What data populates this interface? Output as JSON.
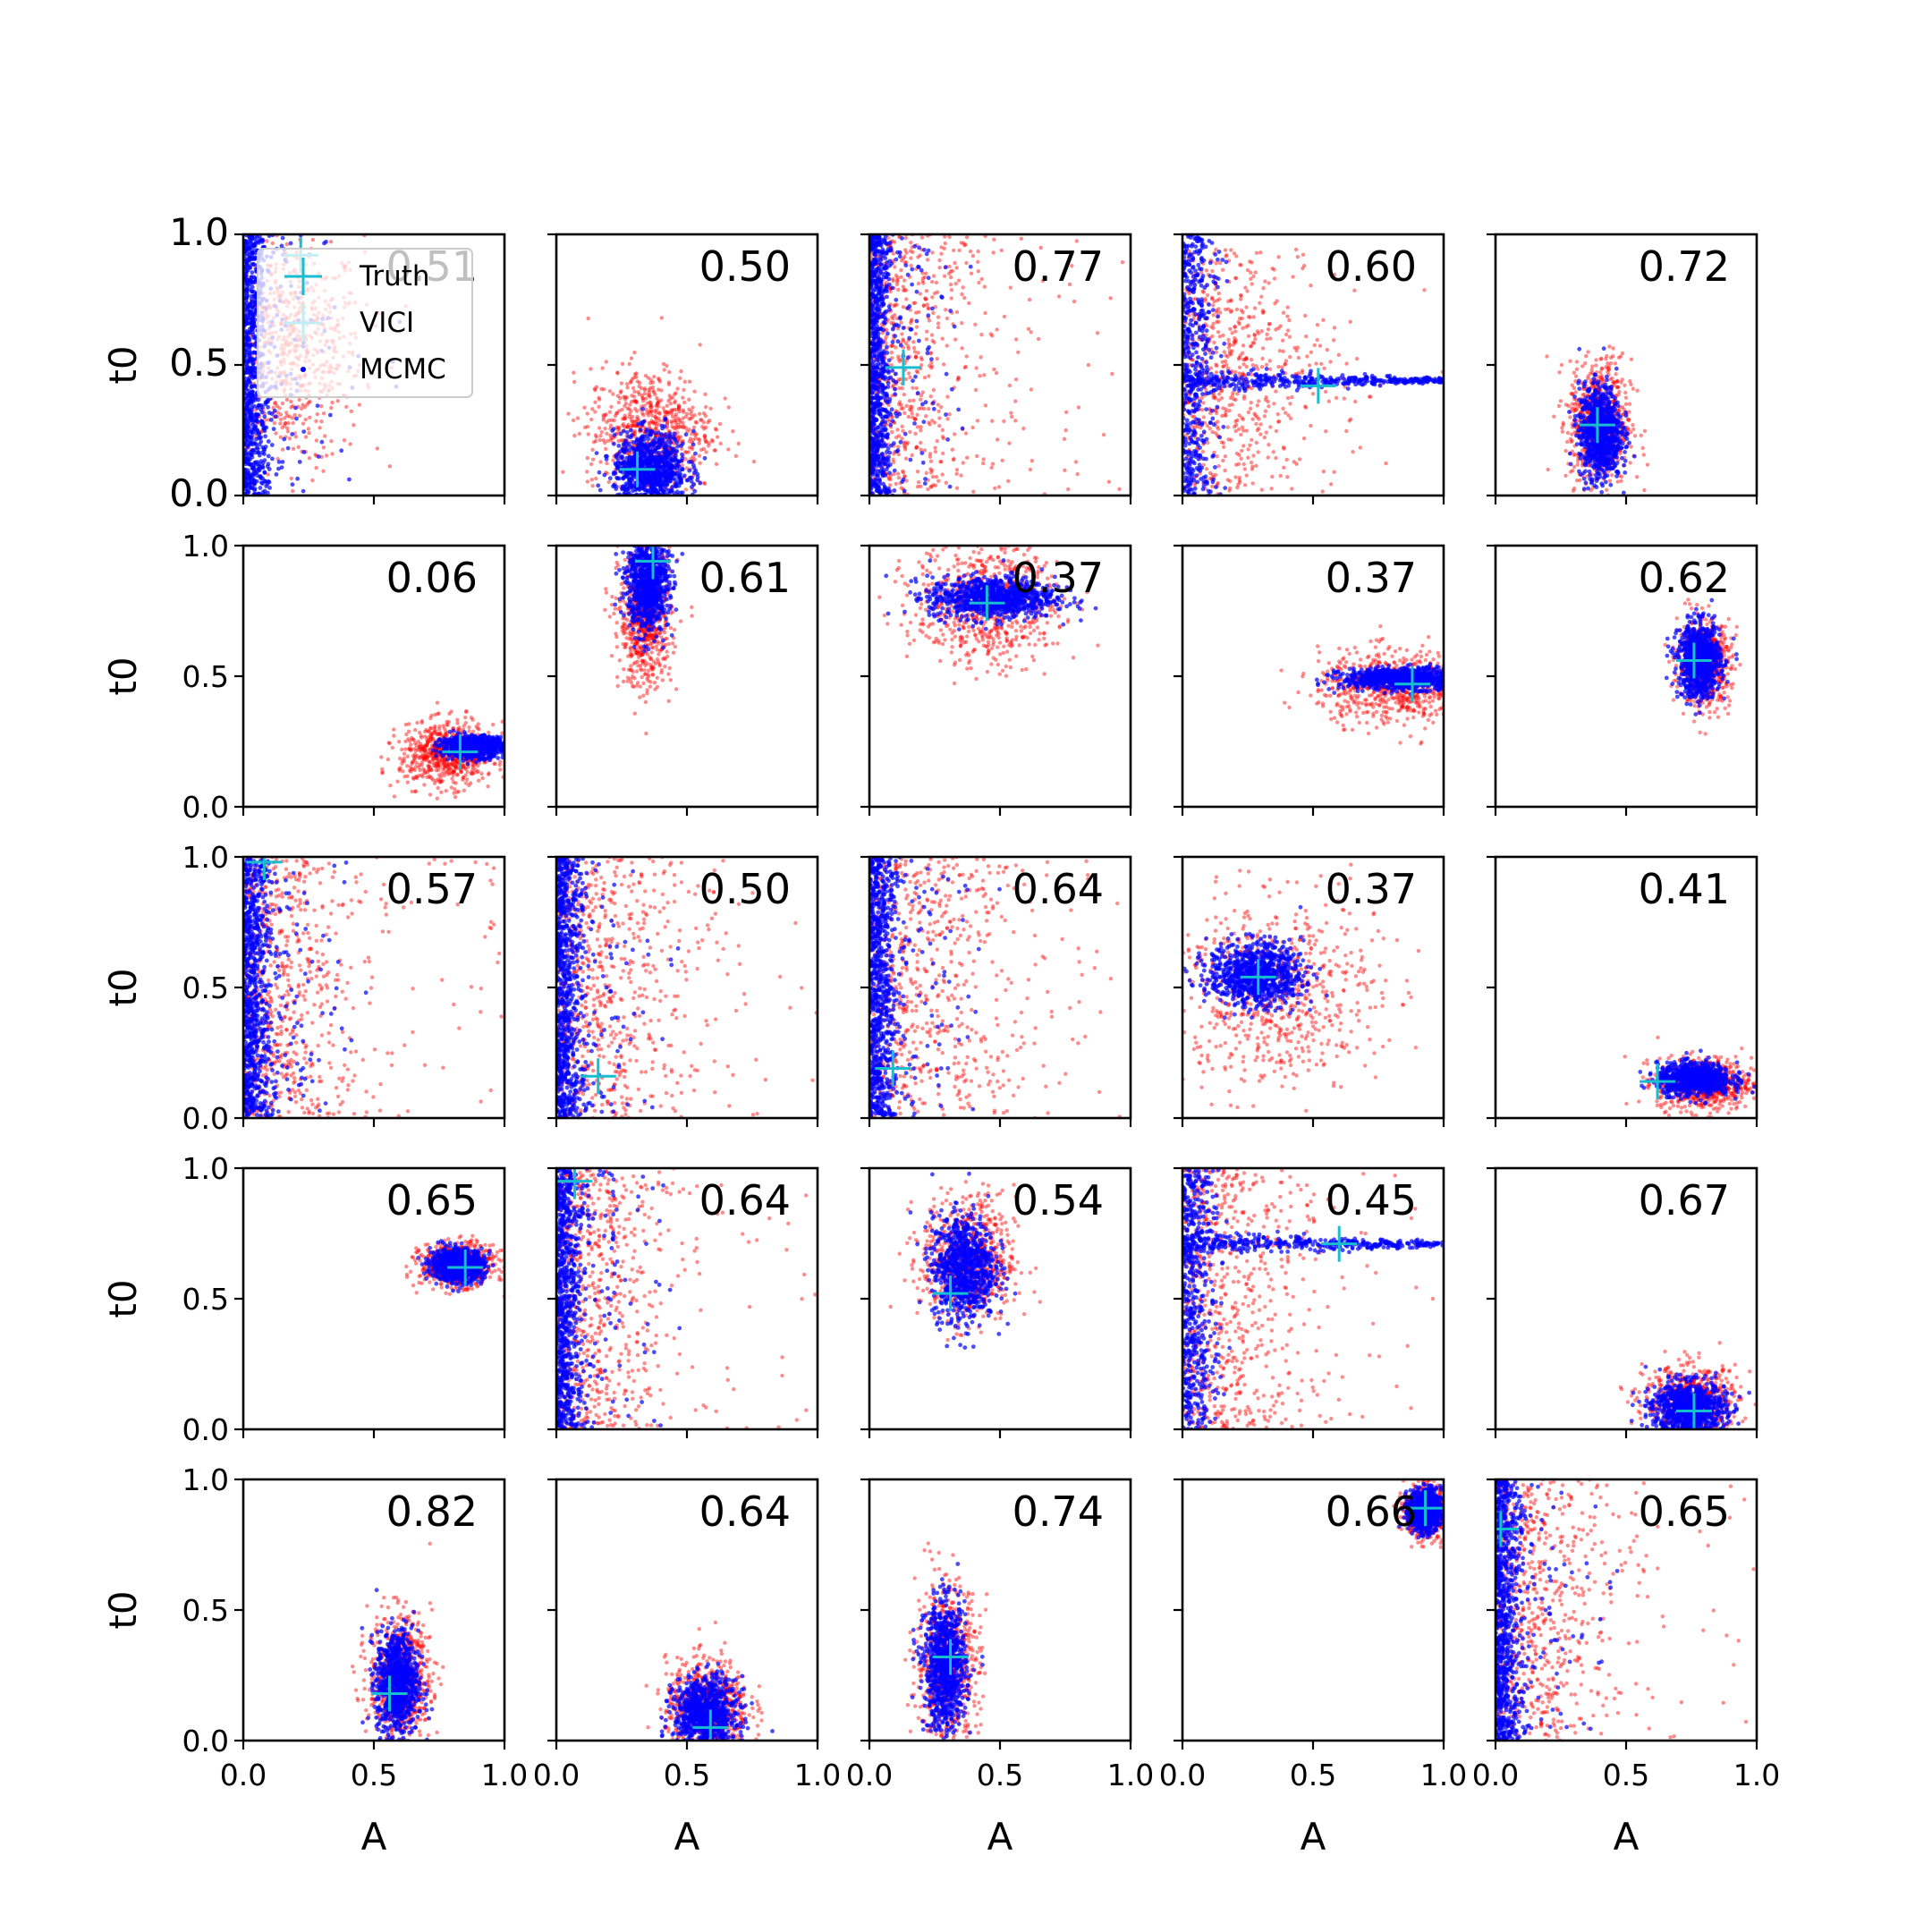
{
  "chart_data": {
    "type": "scatter",
    "layout": "5x5 grid of scatter panels",
    "xlabel": "A",
    "ylabel": "t0",
    "xlim": [
      0.0,
      1.0
    ],
    "ylim": [
      0.0,
      1.0
    ],
    "xticks": [
      "0.0",
      "0.5",
      "1.0"
    ],
    "yticks": [
      "0.0",
      "0.5",
      "1.0"
    ],
    "legend": {
      "position": "upper-left of first panel",
      "entries": [
        {
          "label": "Truth",
          "marker": "plus",
          "color": "#17becf"
        },
        {
          "label": "VICI",
          "marker": "dot",
          "color": "#ff0000"
        },
        {
          "label": "MCMC",
          "marker": "dot",
          "color": "#0000ff"
        }
      ]
    },
    "colors": {
      "vici": "#ff0000",
      "mcmc": "#0000ff",
      "truth": "#17becf"
    },
    "panels": [
      {
        "label": "0.51",
        "truth": [
          0.22,
          0.92
        ],
        "vici": {
          "shape": "blob",
          "cx": 0.18,
          "cy": 0.55,
          "sx": 0.14,
          "sy": 0.22
        },
        "mcmc": {
          "shape": "wall",
          "x0": 0.0,
          "x1": 0.08
        }
      },
      {
        "label": "0.50",
        "truth": [
          0.31,
          0.1
        ],
        "vici": {
          "shape": "blob",
          "cx": 0.36,
          "cy": 0.25,
          "sx": 0.12,
          "sy": 0.12
        },
        "mcmc": {
          "shape": "blob",
          "cx": 0.36,
          "cy": 0.1,
          "sx": 0.07,
          "sy": 0.07
        }
      },
      {
        "label": "0.77",
        "truth": [
          0.13,
          0.49
        ],
        "vici": {
          "shape": "wall",
          "x0": 0.0,
          "x1": 0.35
        },
        "mcmc": {
          "shape": "wall",
          "x0": 0.0,
          "x1": 0.07
        }
      },
      {
        "label": "0.60",
        "truth": [
          0.52,
          0.42
        ],
        "vici": {
          "shape": "fan",
          "cx": 0.1,
          "cy": 0.45,
          "sx": 0.25,
          "sy": 0.28
        },
        "mcmc": {
          "shape": "spike",
          "cx": 0.08,
          "cy": 0.44
        }
      },
      {
        "label": "0.72",
        "truth": [
          0.39,
          0.27
        ],
        "vici": {
          "shape": "blob",
          "cx": 0.4,
          "cy": 0.28,
          "sx": 0.06,
          "sy": 0.12
        },
        "mcmc": {
          "shape": "blob",
          "cx": 0.4,
          "cy": 0.24,
          "sx": 0.04,
          "sy": 0.09
        }
      },
      {
        "label": "0.06",
        "truth": [
          0.83,
          0.21
        ],
        "vici": {
          "shape": "blob",
          "cx": 0.78,
          "cy": 0.2,
          "sx": 0.09,
          "sy": 0.06
        },
        "mcmc": {
          "shape": "blob",
          "cx": 0.88,
          "cy": 0.23,
          "sx": 0.06,
          "sy": 0.02
        }
      },
      {
        "label": "0.61",
        "truth": [
          0.37,
          0.94
        ],
        "vici": {
          "shape": "blob",
          "cx": 0.34,
          "cy": 0.72,
          "sx": 0.05,
          "sy": 0.13
        },
        "mcmc": {
          "shape": "blob",
          "cx": 0.35,
          "cy": 0.86,
          "sx": 0.04,
          "sy": 0.09
        }
      },
      {
        "label": "0.37",
        "truth": [
          0.45,
          0.78
        ],
        "vici": {
          "shape": "blob",
          "cx": 0.45,
          "cy": 0.78,
          "sx": 0.14,
          "sy": 0.12
        },
        "mcmc": {
          "shape": "blob",
          "cx": 0.47,
          "cy": 0.8,
          "sx": 0.12,
          "sy": 0.04
        }
      },
      {
        "label": "0.37",
        "truth": [
          0.88,
          0.47
        ],
        "vici": {
          "shape": "blob",
          "cx": 0.82,
          "cy": 0.46,
          "sx": 0.15,
          "sy": 0.07
        },
        "mcmc": {
          "shape": "blob",
          "cx": 0.85,
          "cy": 0.49,
          "sx": 0.12,
          "sy": 0.02
        }
      },
      {
        "label": "0.62",
        "truth": [
          0.76,
          0.56
        ],
        "vici": {
          "shape": "blob",
          "cx": 0.8,
          "cy": 0.55,
          "sx": 0.05,
          "sy": 0.08
        },
        "mcmc": {
          "shape": "blob",
          "cx": 0.78,
          "cy": 0.56,
          "sx": 0.04,
          "sy": 0.07
        }
      },
      {
        "label": "0.57",
        "truth": [
          0.08,
          0.98
        ],
        "vici": {
          "shape": "wall",
          "x0": 0.0,
          "x1": 0.35
        },
        "mcmc": {
          "shape": "wall",
          "x0": 0.0,
          "x1": 0.09
        }
      },
      {
        "label": "0.50",
        "truth": [
          0.16,
          0.16
        ],
        "vici": {
          "shape": "wall",
          "x0": 0.0,
          "x1": 0.45
        },
        "mcmc": {
          "shape": "wall",
          "x0": 0.0,
          "x1": 0.08
        }
      },
      {
        "label": "0.64",
        "truth": [
          0.09,
          0.19
        ],
        "vici": {
          "shape": "wall",
          "x0": 0.0,
          "x1": 0.5
        },
        "mcmc": {
          "shape": "wall",
          "x0": 0.0,
          "x1": 0.09
        }
      },
      {
        "label": "0.37",
        "truth": [
          0.29,
          0.54
        ],
        "vici": {
          "shape": "blob",
          "cx": 0.35,
          "cy": 0.48,
          "sx": 0.2,
          "sy": 0.18
        },
        "mcmc": {
          "shape": "blob",
          "cx": 0.28,
          "cy": 0.55,
          "sx": 0.09,
          "sy": 0.06
        }
      },
      {
        "label": "0.41",
        "truth": [
          0.62,
          0.14
        ],
        "vici": {
          "shape": "blob",
          "cx": 0.8,
          "cy": 0.13,
          "sx": 0.09,
          "sy": 0.05
        },
        "mcmc": {
          "shape": "blob",
          "cx": 0.76,
          "cy": 0.15,
          "sx": 0.07,
          "sy": 0.03
        }
      },
      {
        "label": "0.65",
        "truth": [
          0.85,
          0.62
        ],
        "vici": {
          "shape": "blob",
          "cx": 0.82,
          "cy": 0.63,
          "sx": 0.07,
          "sy": 0.04
        },
        "mcmc": {
          "shape": "blob",
          "cx": 0.82,
          "cy": 0.63,
          "sx": 0.05,
          "sy": 0.03
        }
      },
      {
        "label": "0.64",
        "truth": [
          0.07,
          0.95
        ],
        "vici": {
          "shape": "wall",
          "x0": 0.0,
          "x1": 0.35
        },
        "mcmc": {
          "shape": "wall",
          "x0": 0.0,
          "x1": 0.08
        }
      },
      {
        "label": "0.54",
        "truth": [
          0.31,
          0.52
        ],
        "vici": {
          "shape": "blob",
          "cx": 0.38,
          "cy": 0.65,
          "sx": 0.09,
          "sy": 0.12
        },
        "mcmc": {
          "shape": "blob",
          "cx": 0.36,
          "cy": 0.62,
          "sx": 0.06,
          "sy": 0.1
        }
      },
      {
        "label": "0.45",
        "truth": [
          0.6,
          0.71
        ],
        "vici": {
          "shape": "wall",
          "x0": 0.0,
          "x1": 0.4
        },
        "mcmc": {
          "shape": "spike",
          "cx": 0.08,
          "cy": 0.71
        }
      },
      {
        "label": "0.67",
        "truth": [
          0.76,
          0.07
        ],
        "vici": {
          "shape": "blob",
          "cx": 0.75,
          "cy": 0.1,
          "sx": 0.09,
          "sy": 0.07
        },
        "mcmc": {
          "shape": "blob",
          "cx": 0.74,
          "cy": 0.08,
          "sx": 0.07,
          "sy": 0.05
        }
      },
      {
        "label": "0.82",
        "truth": [
          0.56,
          0.18
        ],
        "vici": {
          "shape": "blob",
          "cx": 0.6,
          "cy": 0.24,
          "sx": 0.06,
          "sy": 0.12
        },
        "mcmc": {
          "shape": "blob",
          "cx": 0.59,
          "cy": 0.22,
          "sx": 0.04,
          "sy": 0.1
        }
      },
      {
        "label": "0.64",
        "truth": [
          0.59,
          0.05
        ],
        "vici": {
          "shape": "blob",
          "cx": 0.58,
          "cy": 0.13,
          "sx": 0.08,
          "sy": 0.09
        },
        "mcmc": {
          "shape": "blob",
          "cx": 0.57,
          "cy": 0.1,
          "sx": 0.06,
          "sy": 0.07
        }
      },
      {
        "label": "0.74",
        "truth": [
          0.31,
          0.32
        ],
        "vici": {
          "shape": "blob",
          "cx": 0.3,
          "cy": 0.3,
          "sx": 0.06,
          "sy": 0.15
        },
        "mcmc": {
          "shape": "blob",
          "cx": 0.29,
          "cy": 0.28,
          "sx": 0.04,
          "sy": 0.12
        }
      },
      {
        "label": "0.66",
        "truth": [
          0.93,
          0.89
        ],
        "vici": {
          "shape": "blob",
          "cx": 0.93,
          "cy": 0.88,
          "sx": 0.04,
          "sy": 0.05
        },
        "mcmc": {
          "shape": "blob",
          "cx": 0.93,
          "cy": 0.88,
          "sx": 0.03,
          "sy": 0.04
        }
      },
      {
        "label": "0.65",
        "truth": [
          0.02,
          0.81
        ],
        "vici": {
          "shape": "wall",
          "x0": 0.0,
          "x1": 0.4
        },
        "mcmc": {
          "shape": "wall",
          "x0": 0.0,
          "x1": 0.08
        }
      }
    ]
  }
}
